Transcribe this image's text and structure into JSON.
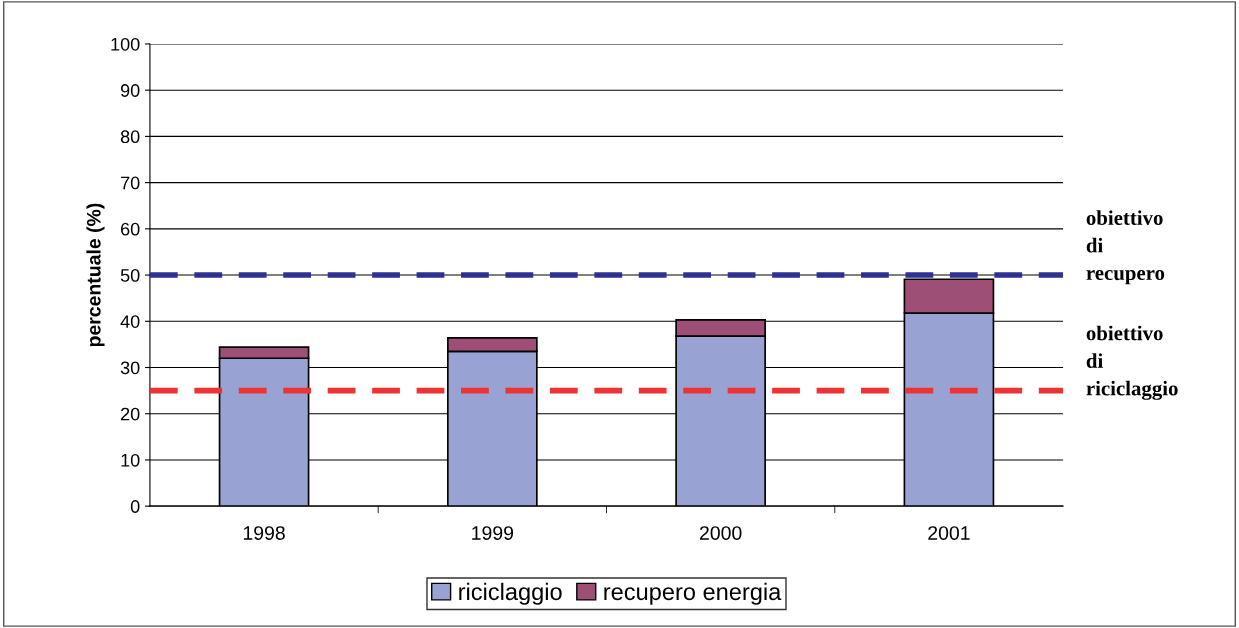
{
  "chart_data": {
    "type": "bar",
    "stacked": true,
    "ylabel": "percentuale (%)",
    "categories": [
      "1998",
      "1999",
      "2000",
      "2001"
    ],
    "series": [
      {
        "name": "riciclaggio",
        "color": "#99a3d3",
        "values": [
          32,
          33.5,
          36.8,
          41.8
        ]
      },
      {
        "name": "recupero energia",
        "color": "#9e4f76",
        "values": [
          2.4,
          2.9,
          3.5,
          7.3
        ]
      }
    ],
    "ylim": [
      0,
      100
    ],
    "yticks": [
      0,
      10,
      20,
      30,
      40,
      50,
      60,
      70,
      80,
      90,
      100
    ],
    "grid": "y",
    "legend": "bottom",
    "ref_lines": [
      {
        "axis": "y",
        "value": 50,
        "label": "obiettivo\ndi\nrecupero",
        "color": "#2e3192",
        "line_style": "dashed"
      },
      {
        "axis": "y",
        "value": 25,
        "label": "obiettivo\ndi\nriciclaggio",
        "color": "#ee3333",
        "line_style": "dashed"
      }
    ]
  }
}
